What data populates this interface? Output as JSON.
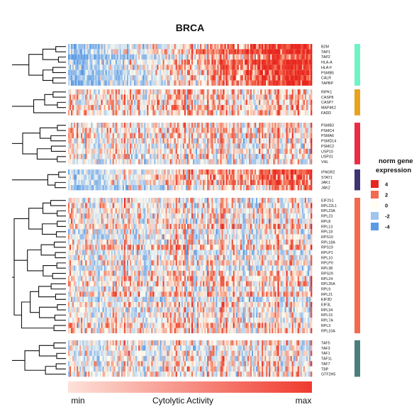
{
  "chart_data": {
    "type": "heatmap",
    "title": "BRCA",
    "groups": [
      {
        "genes": [
          "B2M",
          "TAP1",
          "TAP2",
          "HLA-A",
          "HLA-F",
          "PSMB5",
          "CALR",
          "TAPBP"
        ],
        "color": "#6ef5c4",
        "trend": 0.85
      },
      {
        "genes": [
          "RIPK1",
          "CASP8",
          "CASP7",
          "MAP4K2",
          "FADD"
        ],
        "color": "#e8a21c",
        "trend": 0.12
      },
      {
        "genes": [
          "PSMB3",
          "PSMC4",
          "PSMA6",
          "PSMD14",
          "PSMC2",
          "USP10",
          "USP31",
          "VHL"
        ],
        "color": "#ea2d44",
        "trend": 0.08
      },
      {
        "genes": [
          "IFNGR2",
          "STAT1",
          "JAK1",
          "JAK2"
        ],
        "color": "#3e3470",
        "trend": 0.55
      },
      {
        "genes": [
          "EIF2S1",
          "RPL22L1",
          "RPL23A",
          "RPL23",
          "RPL8",
          "RPL13",
          "RPL18",
          "RPS10",
          "RPL18A",
          "RPS19",
          "RPLP1",
          "RPL10",
          "RPLP0",
          "RPL38",
          "RPS29",
          "RPL24",
          "RPL35A",
          "RPL9",
          "RPL21",
          "EIF3D",
          "EIF3L",
          "RPL34",
          "RPL15",
          "RPL7A",
          "RPL3",
          "RPL10A"
        ],
        "color": "#f36a4f",
        "trend": 0.05
      },
      {
        "genes": [
          "TAF5",
          "TAF3",
          "TAF1",
          "TAF1L",
          "TAF7",
          "TBP",
          "GTF2H5"
        ],
        "color": "#4a7f7e",
        "trend": 0.1
      }
    ],
    "n_samples": 170,
    "legend": {
      "title_lines": [
        "norm gene",
        "expression"
      ],
      "entries": [
        {
          "label": "4",
          "value": 4,
          "color": "#e8261f"
        },
        {
          "label": "2",
          "value": 2,
          "color": "#f36a4f"
        },
        {
          "label": "0",
          "value": 0,
          "color": "#fffef0"
        },
        {
          "label": "-2",
          "value": -2,
          "color": "#9fc4ee"
        },
        {
          "label": "-4",
          "value": -4,
          "color": "#5a9ae3"
        }
      ]
    },
    "color_bar": {
      "label": "Cytolytic Activity",
      "min_label": "min",
      "max_label": "max",
      "from_color": "#fde2d9",
      "to_color": "#f03a2e"
    }
  }
}
